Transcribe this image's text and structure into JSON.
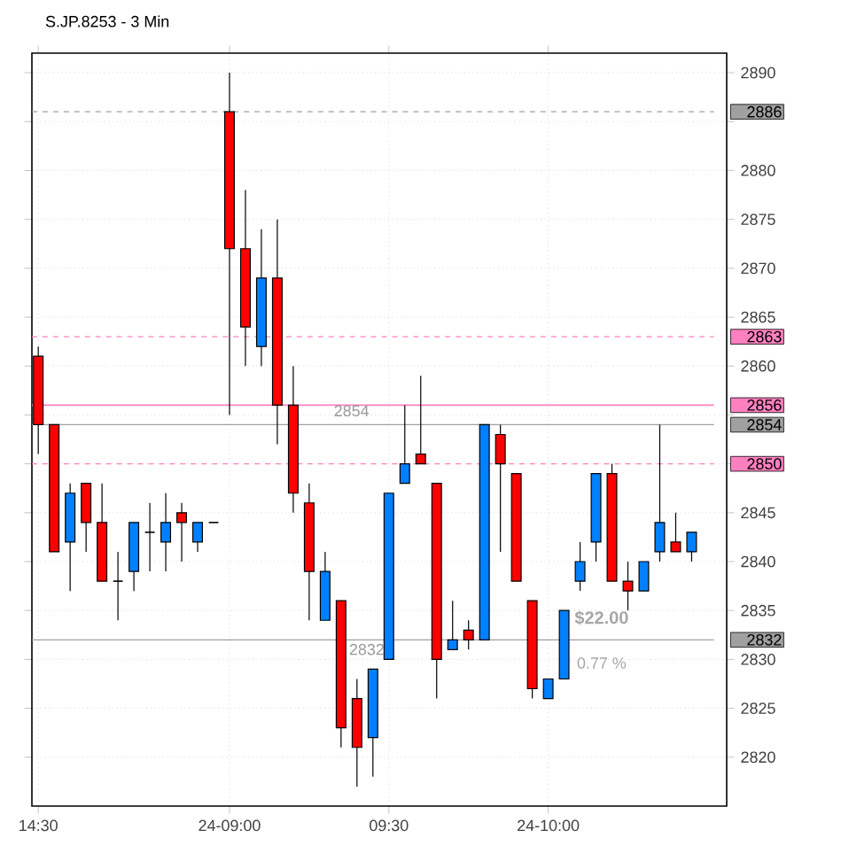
{
  "chart_data": {
    "type": "candlestick",
    "title": "S.JP.8253 - 3 Min",
    "categories": [
      "14:30",
      null,
      null,
      null,
      null,
      null,
      null,
      null,
      null,
      null,
      null,
      null,
      "24-09:00",
      null,
      null,
      null,
      null,
      null,
      null,
      null,
      null,
      null,
      "09:30",
      null,
      null,
      null,
      null,
      null,
      null,
      null,
      null,
      null,
      "24-10:00",
      null,
      null,
      null,
      null,
      null,
      null,
      null,
      null,
      null
    ],
    "ohlc": [
      [
        2861,
        2862,
        2851,
        2854
      ],
      [
        2854,
        2854,
        2841,
        2841
      ],
      [
        2842,
        2848,
        2837,
        2847
      ],
      [
        2848,
        2848,
        2841,
        2844
      ],
      [
        2844,
        2848,
        2838,
        2838
      ],
      [
        2838,
        2841,
        2834,
        2838
      ],
      [
        2839,
        2844,
        2837,
        2844
      ],
      [
        2843,
        2846,
        2839,
        2843
      ],
      [
        2842,
        2847,
        2839,
        2844
      ],
      [
        2845,
        2846,
        2840,
        2844
      ],
      [
        2842,
        2844,
        2841,
        2844
      ],
      [
        2844,
        2844,
        2844,
        2844
      ],
      [
        2886,
        2890,
        2855,
        2872
      ],
      [
        2872,
        2878,
        2860,
        2864
      ],
      [
        2862,
        2874,
        2860,
        2869
      ],
      [
        2869,
        2875,
        2852,
        2856
      ],
      [
        2856,
        2860,
        2845,
        2847
      ],
      [
        2846,
        2848,
        2834,
        2839
      ],
      [
        2834,
        2841,
        2834,
        2839
      ],
      [
        2836,
        2836,
        2821,
        2823
      ],
      [
        2826,
        2828,
        2817,
        2821
      ],
      [
        2822,
        2829,
        2818,
        2829
      ],
      [
        2830,
        2847,
        2830,
        2847
      ],
      [
        2848,
        2856,
        2848,
        2850
      ],
      [
        2851,
        2859,
        2850,
        2850
      ],
      [
        2848,
        2848,
        2826,
        2830
      ],
      [
        2831,
        2836,
        2831,
        2832
      ],
      [
        2833,
        2834,
        2831,
        2832
      ],
      [
        2832,
        2854,
        2832,
        2854
      ],
      [
        2853,
        2854,
        2841,
        2850
      ],
      [
        2849,
        2849,
        2838,
        2838
      ],
      [
        2836,
        2836,
        2826,
        2827
      ],
      [
        2826,
        2828,
        2826,
        2828
      ],
      [
        2828,
        2835,
        2828,
        2835
      ],
      [
        2838,
        2842,
        2837,
        2840
      ],
      [
        2842,
        2849,
        2840,
        2849
      ],
      [
        2849,
        2850,
        2838,
        2838
      ],
      [
        2838,
        2840,
        2835,
        2837
      ],
      [
        2837,
        2840,
        2837,
        2840
      ],
      [
        2841,
        2854,
        2840,
        2844
      ],
      [
        2842,
        2845,
        2841,
        2841
      ],
      [
        2841,
        2843,
        2840,
        2843
      ]
    ],
    "colors": [
      "#ff0000",
      "#ff0000",
      "#0080ff",
      "#ff0000",
      "#ff0000",
      "#000000",
      "#0080ff",
      "#000000",
      "#0080ff",
      "#ff0000",
      "#0080ff",
      "#000000",
      "#ff0000",
      "#ff0000",
      "#0080ff",
      "#ff0000",
      "#ff0000",
      "#ff0000",
      "#0080ff",
      "#ff0000",
      "#ff0000",
      "#0080ff",
      "#0080ff",
      "#0080ff",
      "#ff0000",
      "#ff0000",
      "#0080ff",
      "#ff0000",
      "#0080ff",
      "#ff0000",
      "#ff0000",
      "#ff0000",
      "#0080ff",
      "#0080ff",
      "#0080ff",
      "#0080ff",
      "#ff0000",
      "#ff0000",
      "#0080ff",
      "#0080ff",
      "#ff0000",
      "#0080ff"
    ],
    "ylim": [
      2815,
      2892
    ],
    "yticks": [
      2820,
      2825,
      2830,
      2835,
      2840,
      2845,
      {
        "value": 2850,
        "label": null
      },
      {
        "value": 2855,
        "label": null
      },
      2860,
      2865,
      2870,
      2875,
      2880,
      {
        "value": 2885,
        "label": null
      },
      2890
    ],
    "grid": true,
    "ref_lines": [
      {
        "axis": "y",
        "value": 2886,
        "label": "2886",
        "color": "#a0a0a0",
        "line_style": "dashed"
      },
      {
        "axis": "y",
        "value": 2863,
        "label": "2863",
        "color": "#ff80c0",
        "line_style": "dashed"
      },
      {
        "axis": "y",
        "value": 2856,
        "label": "2856",
        "color": "#ff80c0",
        "line_style": "solid"
      },
      {
        "axis": "y",
        "value": 2850,
        "label": "2850",
        "color": "#ff80c0",
        "line_style": "dashed"
      },
      {
        "axis": "y",
        "value": 2854,
        "label": "2854",
        "color": "#a0a0a0",
        "line_style": "solid"
      },
      {
        "axis": "y",
        "value": 2832,
        "label": "2832",
        "color": "#a0a0a0",
        "line_style": "solid"
      }
    ],
    "annotations": [
      "2854",
      "2832",
      "$22.00",
      "0.77 %"
    ]
  }
}
